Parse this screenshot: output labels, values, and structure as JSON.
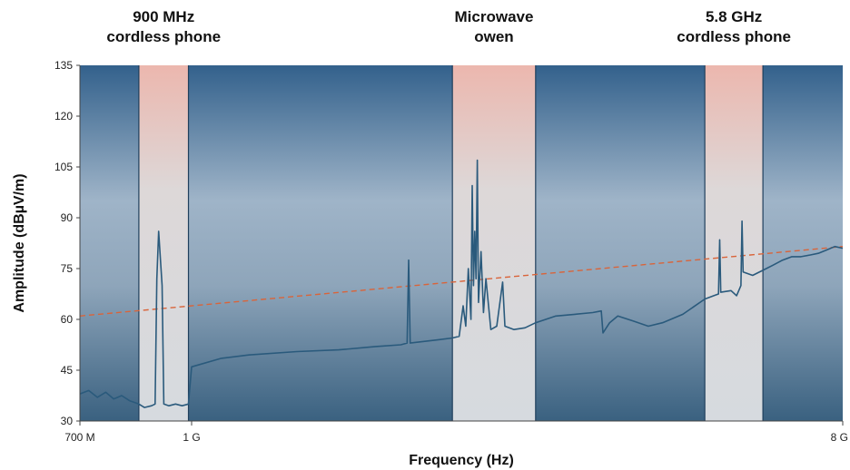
{
  "chart_data": {
    "type": "line",
    "xlabel": "Frequency (Hz)",
    "ylabel": "Amplitude (dBµV/m)",
    "ylim": [
      30,
      135
    ],
    "yticks": [
      30,
      45,
      60,
      75,
      90,
      105,
      120,
      135
    ],
    "xscale": "log",
    "xlim": [
      700000000,
      8000000000
    ],
    "xticks": [
      {
        "value": 700000000,
        "label": "700 M"
      },
      {
        "value": 1000000000,
        "label": "1 G"
      },
      {
        "value": 8000000000,
        "label": "8 G"
      }
    ],
    "bands": [
      {
        "label_lines": [
          "900 MHz",
          "cordless phone"
        ],
        "x_start": 845000000,
        "x_end": 990000000
      },
      {
        "label_lines": [
          "Microwave",
          "owen"
        ],
        "x_start": 2300000000,
        "x_end": 3000000000
      },
      {
        "label_lines": [
          "5.8 GHz",
          "cordless phone"
        ],
        "x_start": 5150000000,
        "x_end": 6200000000
      }
    ],
    "dividers": [
      845000000,
      990000000,
      2300000000,
      3000000000,
      5150000000,
      6200000000
    ],
    "limit_line": {
      "style": "dashed",
      "color": "#d9643a",
      "points": [
        [
          700000000,
          61
        ],
        [
          8000000000,
          81.5
        ]
      ]
    },
    "series": [
      {
        "color": "#2a5a7c",
        "points": [
          [
            700000000,
            38
          ],
          [
            720000000,
            39
          ],
          [
            740000000,
            37
          ],
          [
            760000000,
            38.5
          ],
          [
            780000000,
            36.5
          ],
          [
            800000000,
            37.5
          ],
          [
            820000000,
            36
          ],
          [
            845000000,
            35
          ],
          [
            860000000,
            34
          ],
          [
            880000000,
            34.5
          ],
          [
            890000000,
            35
          ],
          [
            895000000,
            72
          ],
          [
            900000000,
            86
          ],
          [
            905000000,
            78
          ],
          [
            910000000,
            70
          ],
          [
            915000000,
            35
          ],
          [
            930000000,
            34.5
          ],
          [
            950000000,
            35
          ],
          [
            970000000,
            34.5
          ],
          [
            990000000,
            35
          ],
          [
            1000000000,
            46
          ],
          [
            1100000000,
            48.5
          ],
          [
            1200000000,
            49.5
          ],
          [
            1400000000,
            50.5
          ],
          [
            1600000000,
            51
          ],
          [
            1800000000,
            52
          ],
          [
            1950000000,
            52.5
          ],
          [
            1990000000,
            53
          ],
          [
            2000000000,
            77.5
          ],
          [
            2010000000,
            53
          ],
          [
            2100000000,
            53.5
          ],
          [
            2200000000,
            54
          ],
          [
            2300000000,
            54.5
          ],
          [
            2350000000,
            55
          ],
          [
            2380000000,
            64
          ],
          [
            2400000000,
            58
          ],
          [
            2420000000,
            75
          ],
          [
            2440000000,
            60
          ],
          [
            2450000000,
            99.5
          ],
          [
            2460000000,
            70
          ],
          [
            2470000000,
            86
          ],
          [
            2480000000,
            72
          ],
          [
            2490000000,
            107
          ],
          [
            2500000000,
            65
          ],
          [
            2520000000,
            80
          ],
          [
            2540000000,
            62
          ],
          [
            2560000000,
            72
          ],
          [
            2600000000,
            57
          ],
          [
            2650000000,
            58
          ],
          [
            2700000000,
            71
          ],
          [
            2720000000,
            58
          ],
          [
            2800000000,
            57
          ],
          [
            2900000000,
            57.5
          ],
          [
            3000000000,
            59
          ],
          [
            3200000000,
            61
          ],
          [
            3400000000,
            61.5
          ],
          [
            3600000000,
            62
          ],
          [
            3700000000,
            62.5
          ],
          [
            3720000000,
            56
          ],
          [
            3800000000,
            59
          ],
          [
            3900000000,
            61
          ],
          [
            4100000000,
            59.5
          ],
          [
            4300000000,
            58
          ],
          [
            4500000000,
            59
          ],
          [
            4800000000,
            61.5
          ],
          [
            5150000000,
            66
          ],
          [
            5300000000,
            67
          ],
          [
            5380000000,
            67.5
          ],
          [
            5400000000,
            83.5
          ],
          [
            5420000000,
            68
          ],
          [
            5600000000,
            68.5
          ],
          [
            5700000000,
            67
          ],
          [
            5780000000,
            70
          ],
          [
            5800000000,
            89
          ],
          [
            5820000000,
            74
          ],
          [
            6000000000,
            73
          ],
          [
            6200000000,
            74.5
          ],
          [
            6400000000,
            76
          ],
          [
            6600000000,
            77.5
          ],
          [
            6800000000,
            78.5
          ],
          [
            7000000000,
            78.5
          ],
          [
            7200000000,
            79
          ],
          [
            7400000000,
            79.5
          ],
          [
            7600000000,
            80.5
          ],
          [
            7800000000,
            81.5
          ],
          [
            8000000000,
            81
          ]
        ]
      }
    ]
  }
}
